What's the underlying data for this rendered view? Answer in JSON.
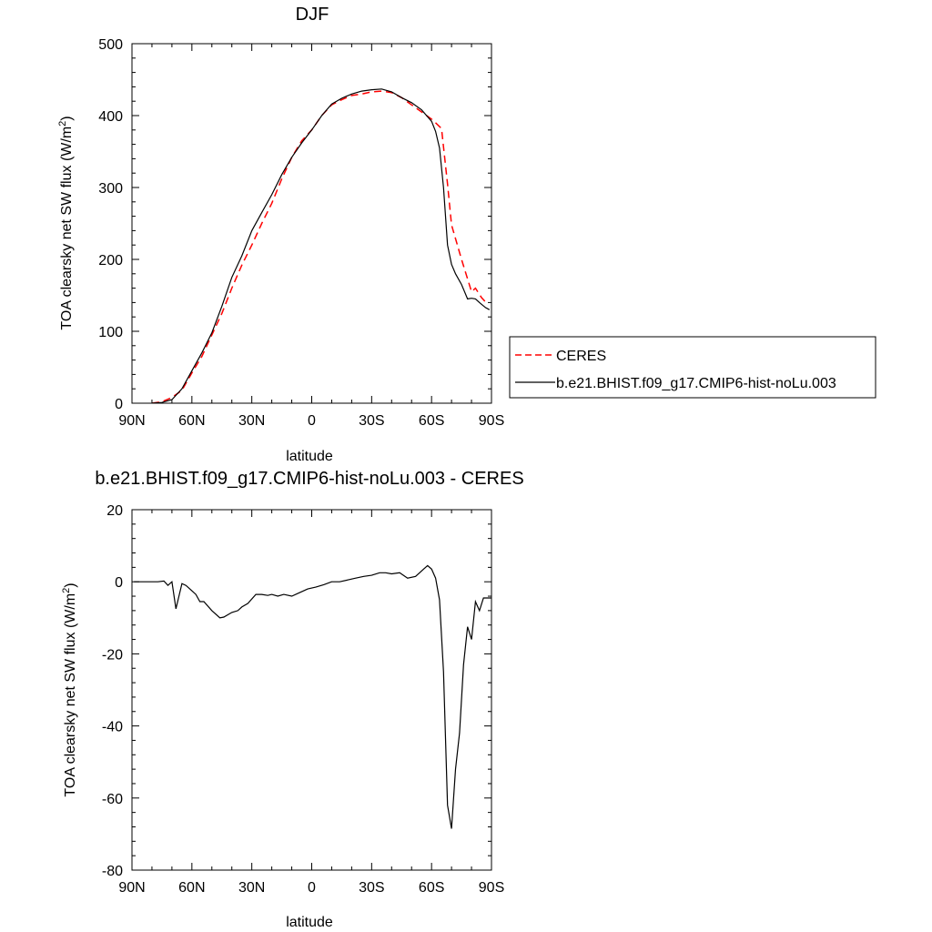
{
  "chart_data": [
    {
      "type": "line",
      "title": "DJF",
      "xlabel": "latitude",
      "ylabel": "TOA clearsky net SW flux (W/m",
      "ylabel_sup": "2",
      "ylabel_end": ")",
      "xlim": [
        -90,
        90
      ],
      "ylim": [
        0,
        500
      ],
      "xticks": [
        -90,
        -60,
        -30,
        0,
        30,
        60,
        90
      ],
      "xtick_labels": [
        "90N",
        "60N",
        "30N",
        "0",
        "30S",
        "60S",
        "90S"
      ],
      "yticks": [
        0,
        100,
        200,
        300,
        400,
        500
      ],
      "ytick_labels": [
        "0",
        "100",
        "200",
        "300",
        "400",
        "500"
      ],
      "legend_position": "right",
      "series": [
        {
          "name": "CERES",
          "color": "#ff0000",
          "dash": "dashed",
          "x": [
            -80,
            -75,
            -70,
            -65,
            -60,
            -55,
            -50,
            -45,
            -40,
            -35,
            -30,
            -25,
            -20,
            -15,
            -10,
            -5,
            0,
            5,
            10,
            15,
            20,
            25,
            30,
            35,
            40,
            45,
            50,
            55,
            60,
            62,
            65,
            68,
            70,
            75,
            80,
            82,
            85,
            88
          ],
          "y": [
            0,
            2,
            8,
            18,
            42,
            65,
            95,
            125,
            160,
            192,
            220,
            250,
            278,
            312,
            342,
            365,
            380,
            400,
            415,
            422,
            428,
            430,
            433,
            434,
            432,
            425,
            415,
            405,
            395,
            390,
            382,
            305,
            248,
            200,
            155,
            160,
            147,
            138
          ]
        },
        {
          "name": "b.e21.BHIST.f09_g17.CMIP6-hist-noLu.003",
          "color": "#000000",
          "dash": "solid",
          "x": [
            -80,
            -75,
            -70,
            -65,
            -60,
            -55,
            -50,
            -45,
            -40,
            -35,
            -30,
            -25,
            -20,
            -15,
            -10,
            -5,
            0,
            5,
            10,
            15,
            20,
            25,
            30,
            35,
            40,
            45,
            50,
            55,
            60,
            62,
            64,
            66,
            68,
            70,
            72,
            75,
            78,
            80,
            82,
            84,
            87,
            89
          ],
          "y": [
            0,
            1,
            5,
            20,
            45,
            70,
            98,
            135,
            175,
            205,
            240,
            265,
            290,
            318,
            342,
            362,
            380,
            400,
            416,
            424,
            430,
            434,
            436,
            437,
            433,
            425,
            418,
            408,
            392,
            378,
            355,
            300,
            220,
            193,
            180,
            165,
            145,
            146,
            145,
            140,
            133,
            130
          ]
        }
      ]
    },
    {
      "type": "line",
      "title": "b.e21.BHIST.f09_g17.CMIP6-hist-noLu.003 - CERES",
      "xlabel": "latitude",
      "ylabel": "TOA clearsky net SW flux (W/m",
      "ylabel_sup": "2",
      "ylabel_end": ")",
      "xlim": [
        -90,
        90
      ],
      "ylim": [
        -80,
        20
      ],
      "xticks": [
        -90,
        -60,
        -30,
        0,
        30,
        60,
        90
      ],
      "xtick_labels": [
        "90N",
        "60N",
        "30N",
        "0",
        "30S",
        "60S",
        "90S"
      ],
      "yticks": [
        -80,
        -60,
        -40,
        -20,
        0,
        20
      ],
      "ytick_labels": [
        "-80",
        "-60",
        "-40",
        "-20",
        "0",
        "20"
      ],
      "series": [
        {
          "color": "#000000",
          "dash": "solid",
          "x": [
            -89,
            -85,
            -80,
            -77,
            -74,
            -72,
            -70,
            -68,
            -65,
            -63,
            -60,
            -58,
            -56,
            -54,
            -50,
            -46,
            -44,
            -40,
            -37,
            -35,
            -32,
            -28,
            -25,
            -22,
            -20,
            -17,
            -14,
            -10,
            -6,
            -2,
            2,
            6,
            10,
            14,
            18,
            22,
            26,
            30,
            34,
            37,
            40,
            44,
            48,
            52,
            54,
            56,
            58,
            60,
            62,
            64,
            66,
            68,
            70,
            72,
            74,
            76,
            78,
            80,
            82,
            84,
            86,
            88,
            90
          ],
          "y": [
            0,
            0,
            0,
            0,
            0.2,
            -1,
            0,
            -7.5,
            -0.5,
            -1,
            -2.5,
            -3.5,
            -5.5,
            -5.5,
            -8,
            -10,
            -9.8,
            -8.5,
            -8,
            -7,
            -6,
            -3.5,
            -3.5,
            -3.8,
            -3.5,
            -4,
            -3.5,
            -4,
            -3,
            -2,
            -1.5,
            -0.8,
            0,
            0,
            0.5,
            1,
            1.5,
            1.8,
            2.5,
            2.5,
            2.2,
            2.5,
            1,
            1.5,
            2.5,
            3.5,
            4.5,
            3.5,
            1,
            -5,
            -25,
            -62,
            -68.5,
            -52,
            -42,
            -23,
            -12.5,
            -16,
            -5.5,
            -8,
            -4.5,
            -4.5,
            -4.5
          ]
        }
      ]
    }
  ]
}
